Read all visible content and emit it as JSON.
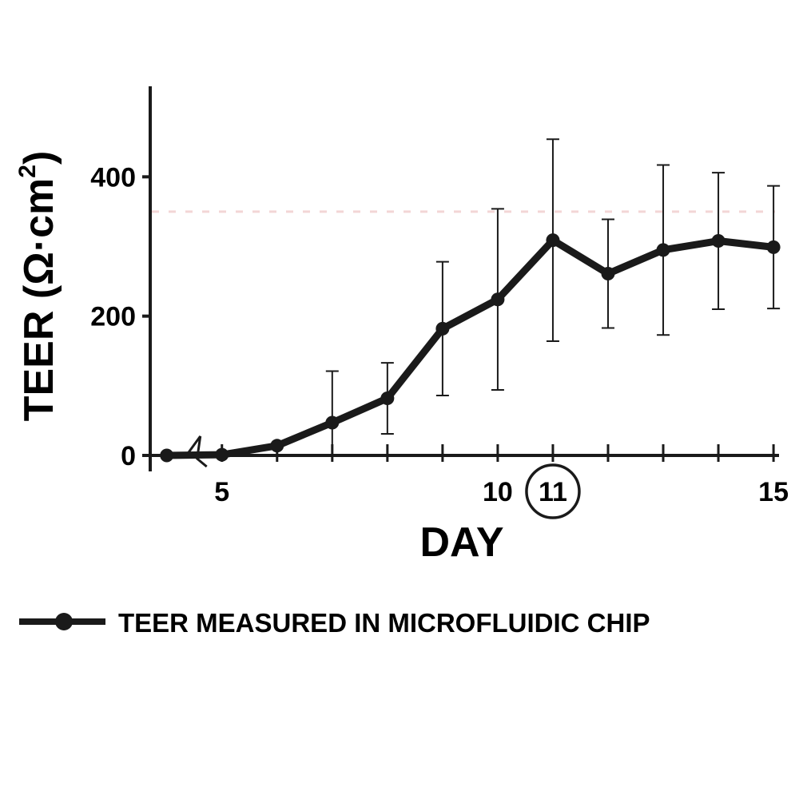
{
  "chart_data": {
    "type": "line",
    "xlabel": "DAY",
    "ylabel": "TEER (Ω·cm",
    "ylabel_superscript": "2",
    "ylabel_close": ")",
    "xlim": [
      3.7,
      15.1
    ],
    "ylim": [
      0,
      530
    ],
    "x_ticks": [
      5,
      6,
      7,
      8,
      9,
      10,
      11,
      12,
      13,
      14,
      15
    ],
    "x_tick_labels": [
      {
        "x": 5,
        "label": "5"
      },
      {
        "x": 10,
        "label": "10"
      },
      {
        "x": 11,
        "label": "11",
        "circled": true
      },
      {
        "x": 15,
        "label": "15"
      }
    ],
    "y_tick_labels": [
      {
        "y": 0,
        "label": "0"
      },
      {
        "y": 200,
        "label": "200"
      },
      {
        "y": 400,
        "label": "400"
      }
    ],
    "axis_break": true,
    "grid": false,
    "series": [
      {
        "name": "TEER MEASURED IN MICROFLUIDIC CHIP",
        "color": "#1a1a1a",
        "x": [
          4,
          5,
          6,
          7,
          8,
          9,
          10,
          11,
          12,
          13,
          14,
          15
        ],
        "y": [
          0,
          1,
          14,
          47,
          82,
          182,
          224,
          309,
          261,
          295,
          308,
          299
        ],
        "error": [
          0,
          0,
          0,
          74,
          51,
          96,
          130,
          145,
          78,
          122,
          98,
          88
        ]
      }
    ],
    "reference_line": {
      "y": 350,
      "color": "#f3d6d6"
    },
    "legend_position": "bottom-left"
  }
}
